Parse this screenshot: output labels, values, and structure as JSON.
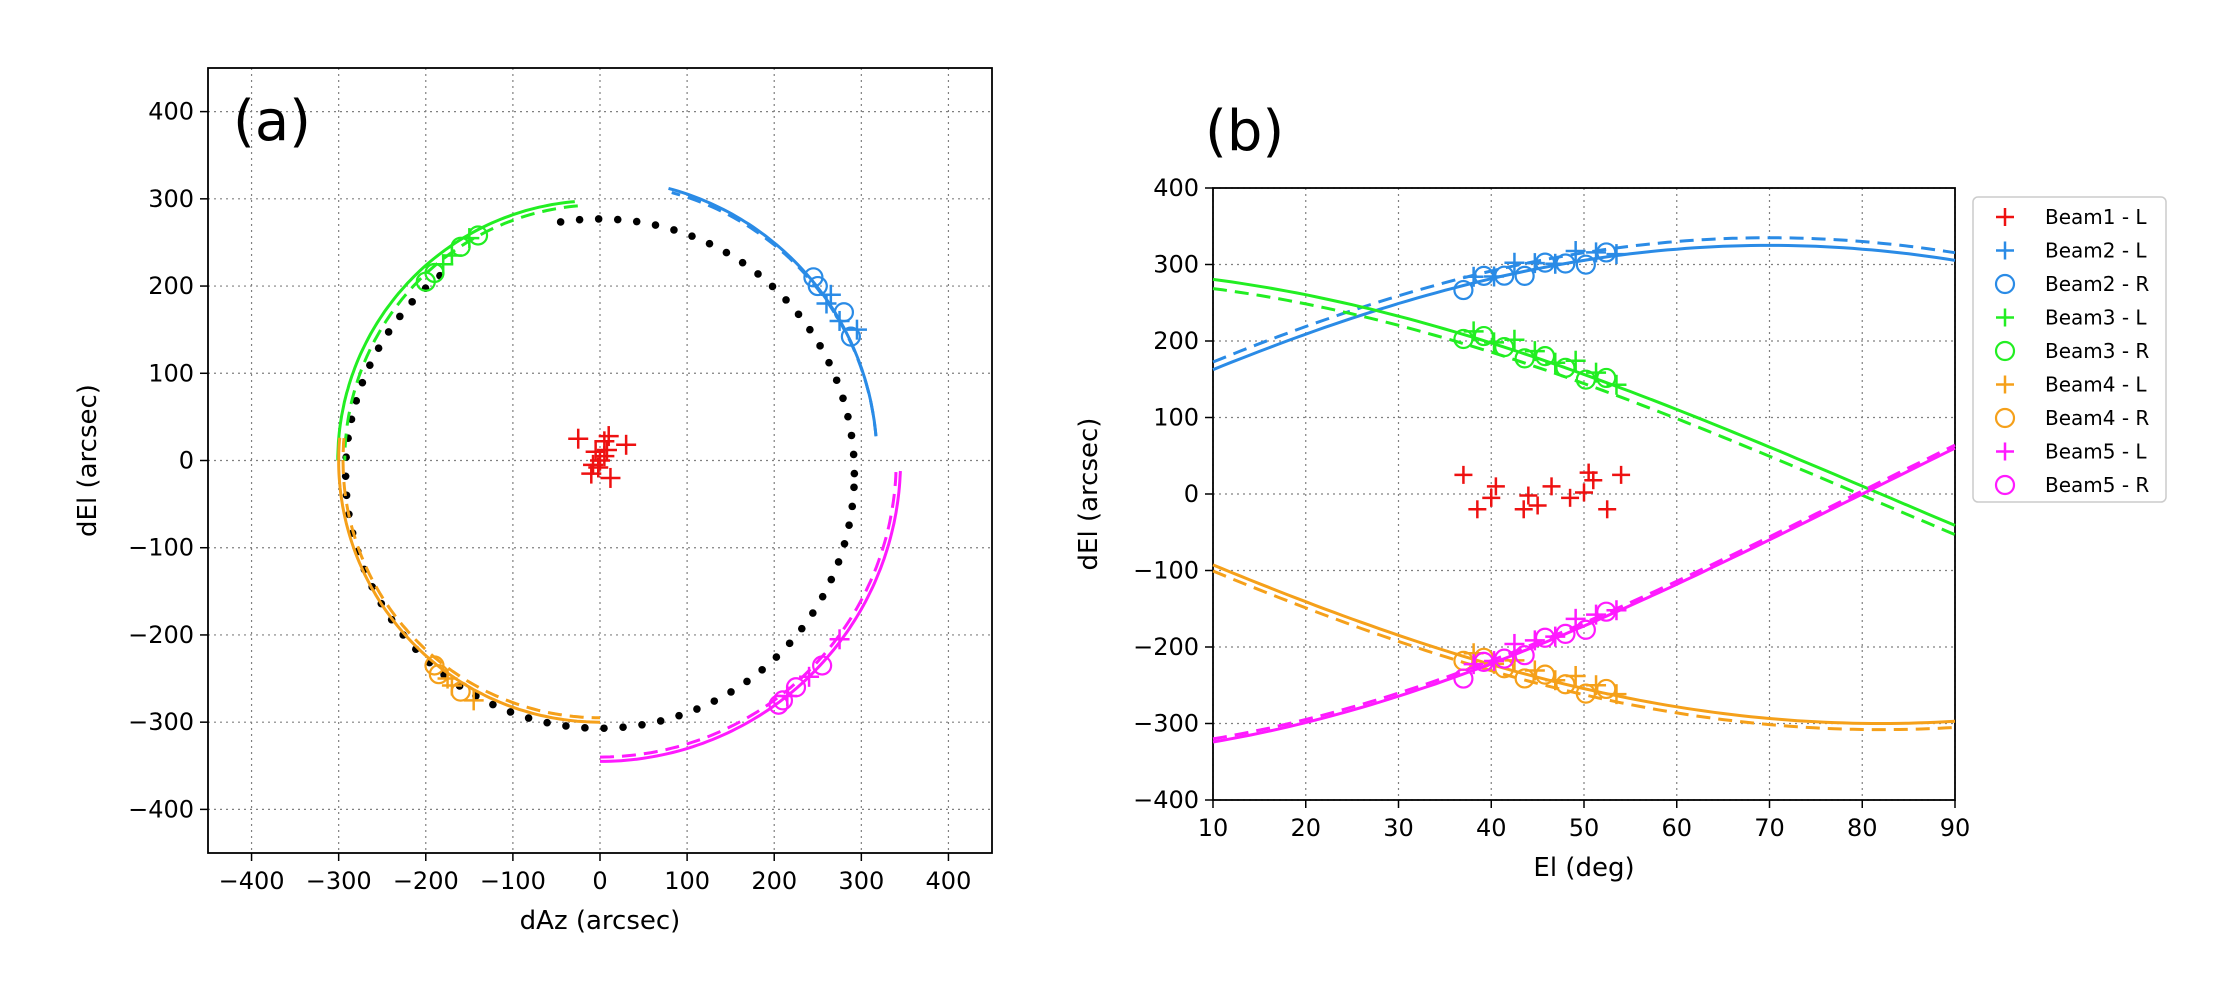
{
  "chart_data": [
    {
      "type": "scatter",
      "panel_label": "(a)",
      "xlabel": "dAz (arcsec)",
      "ylabel": "dEl (arcsec)",
      "xlim": [
        -450,
        450
      ],
      "ylim": [
        -450,
        450
      ],
      "xticks": [
        -400,
        -300,
        -200,
        -100,
        0,
        100,
        200,
        300,
        400
      ],
      "yticks": [
        -400,
        -300,
        -200,
        -100,
        0,
        100,
        200,
        300,
        400
      ],
      "tick_labels_x": [
        "−400",
        "−300",
        "−200",
        "−100",
        "0",
        "100",
        "200",
        "300",
        "400"
      ],
      "tick_labels_y": [
        "−400",
        "−300",
        "−200",
        "−100",
        "0",
        "100",
        "200",
        "300",
        "400"
      ],
      "grid": true,
      "dotted_circle": {
        "center": [
          0,
          -15
        ],
        "radius": 292,
        "color": "#000000"
      },
      "series": [
        {
          "name": "Beam1 - L",
          "color": "#ee1111",
          "marker": "+",
          "points": [
            [
              -25,
              25
            ],
            [
              10,
              28
            ],
            [
              5,
              22
            ],
            [
              -5,
              10
            ],
            [
              0,
              0
            ],
            [
              -8,
              -5
            ],
            [
              5,
              5
            ],
            [
              -10,
              -15
            ],
            [
              12,
              -20
            ],
            [
              30,
              18
            ],
            [
              -2,
              -8
            ],
            [
              8,
              12
            ]
          ]
        },
        {
          "name": "Beam2",
          "color": "#2a8be6",
          "angle_range": [
            5,
            75
          ],
          "arc_radius": 323,
          "arc_dashed_radius": 318,
          "fit_offset": [
            -5,
            0
          ],
          "clusters": [
            [
              245,
              210
            ],
            [
              265,
              190
            ],
            [
              280,
              170
            ],
            [
              295,
              150
            ],
            [
              250,
              200
            ],
            [
              275,
              160
            ],
            [
              288,
              142
            ],
            [
              260,
              180
            ]
          ]
        },
        {
          "name": "Beam3",
          "color": "#22ee22",
          "angle_range": [
            95,
            180
          ],
          "arc_radius": 298,
          "fit_offset": [
            -3,
            0
          ],
          "clusters": [
            [
              -200,
              205
            ],
            [
              -180,
              225
            ],
            [
              -160,
              245
            ],
            [
              -150,
              255
            ],
            [
              -190,
              215
            ],
            [
              -170,
              235
            ],
            [
              -140,
              258
            ]
          ]
        },
        {
          "name": "Beam4",
          "color": "#f5a01a",
          "angle_range": [
            175,
            270
          ],
          "arc_radius": 300,
          "clusters": [
            [
              -190,
              -235
            ],
            [
              -175,
              -250
            ],
            [
              -160,
              -265
            ],
            [
              -145,
              -275
            ],
            [
              -185,
              -245
            ],
            [
              -170,
              -258
            ]
          ]
        },
        {
          "name": "Beam5",
          "color": "#ff1aff",
          "angle_range": [
            270,
            358
          ],
          "arc_radius": 345,
          "clusters": [
            [
              205,
              -280
            ],
            [
              215,
              -270
            ],
            [
              225,
              -260
            ],
            [
              240,
              -248
            ],
            [
              255,
              -235
            ],
            [
              275,
              -205
            ],
            [
              210,
              -275
            ]
          ]
        }
      ]
    },
    {
      "type": "line",
      "panel_label": "(b)",
      "xlabel": "El (deg)",
      "ylabel": "dEl (arcsec)",
      "xlim": [
        10,
        90
      ],
      "ylim": [
        -400,
        400
      ],
      "xticks": [
        10,
        20,
        30,
        40,
        50,
        60,
        70,
        80,
        90
      ],
      "yticks": [
        -400,
        -300,
        -200,
        -100,
        0,
        100,
        200,
        300,
        400
      ],
      "tick_labels_x": [
        "10",
        "20",
        "30",
        "40",
        "50",
        "60",
        "70",
        "80",
        "90"
      ],
      "tick_labels_y": [
        "−400",
        "−300",
        "−200",
        "−100",
        "0",
        "100",
        "200",
        "300",
        "400"
      ],
      "grid": true,
      "legend": "outside-right",
      "legend_entries": [
        {
          "label": "Beam1 - L",
          "marker": "+",
          "color": "#ee1111"
        },
        {
          "label": "Beam2 - L",
          "marker": "+",
          "color": "#2a8be6"
        },
        {
          "label": "Beam2 - R",
          "marker": "o",
          "color": "#2a8be6"
        },
        {
          "label": "Beam3 - L",
          "marker": "+",
          "color": "#22ee22"
        },
        {
          "label": "Beam3 - R",
          "marker": "o",
          "color": "#22ee22"
        },
        {
          "label": "Beam4 - L",
          "marker": "+",
          "color": "#f5a01a"
        },
        {
          "label": "Beam4 - R",
          "marker": "o",
          "color": "#f5a01a"
        },
        {
          "label": "Beam5 - L",
          "marker": "+",
          "color": "#ff1aff"
        },
        {
          "label": "Beam5 - R",
          "marker": "o",
          "color": "#ff1aff"
        }
      ],
      "series": [
        {
          "name": "Beam1 - L",
          "color": "#ee1111",
          "points": [
            [
              37,
              25
            ],
            [
              38.5,
              -20
            ],
            [
              40,
              -5
            ],
            [
              40.5,
              10
            ],
            [
              43.5,
              -20
            ],
            [
              44,
              -2
            ],
            [
              45,
              -15
            ],
            [
              46.5,
              10
            ],
            [
              48.5,
              -5
            ],
            [
              50,
              2
            ],
            [
              50.5,
              28
            ],
            [
              51,
              18
            ],
            [
              52.5,
              -20
            ],
            [
              54,
              25
            ]
          ]
        },
        {
          "name": "Beam2 fit",
          "color": "#2a8be6",
          "solid_offset": 0,
          "dashed_offset": 10,
          "fit_amplitude": 325,
          "fit_phase": 20,
          "points_range": [
            37,
            54
          ]
        },
        {
          "name": "Beam3 fit",
          "color": "#22ee22",
          "solid_offset": 0,
          "dashed_offset": -12,
          "fit_amplitude": 295,
          "fit_phase": 98,
          "points_range": [
            37,
            54
          ]
        },
        {
          "name": "Beam4 fit",
          "color": "#f5a01a",
          "solid_offset": 0,
          "dashed_offset": -8,
          "fit_amplitude": 300,
          "fit_phase": 188,
          "points_range": [
            37,
            54
          ]
        },
        {
          "name": "Beam5 fit",
          "color": "#ff1aff",
          "solid_offset": 0,
          "dashed_offset": 4,
          "fit_amplitude": 345,
          "fit_phase": 280,
          "points_range": [
            37,
            54
          ]
        }
      ]
    }
  ]
}
